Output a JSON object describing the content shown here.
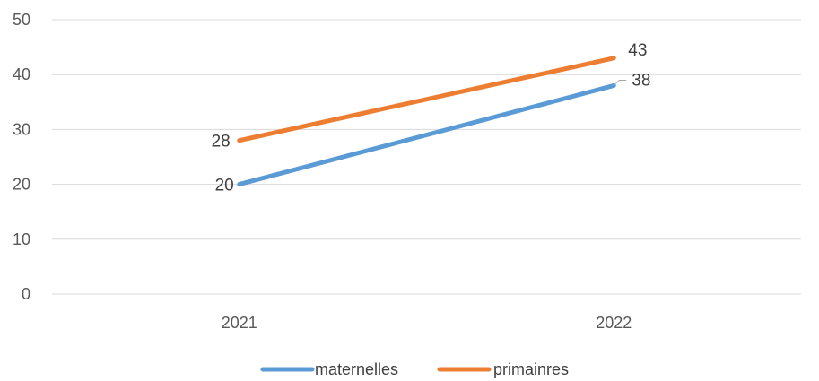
{
  "chart_data": {
    "type": "line",
    "title": "",
    "xlabel": "",
    "ylabel": "",
    "categories": [
      "2021",
      "2022"
    ],
    "ylim": [
      0,
      50
    ],
    "yticks": [
      0,
      10,
      20,
      30,
      40,
      50
    ],
    "grid": true,
    "legend": "bottom",
    "series": [
      {
        "name": "maternelles",
        "color": "#5b9bd5",
        "values": [
          20,
          38
        ],
        "labels": [
          "20",
          "38"
        ]
      },
      {
        "name": "primainres",
        "color": "#ed7d31",
        "values": [
          28,
          43
        ],
        "labels": [
          "28",
          "43"
        ]
      }
    ]
  }
}
